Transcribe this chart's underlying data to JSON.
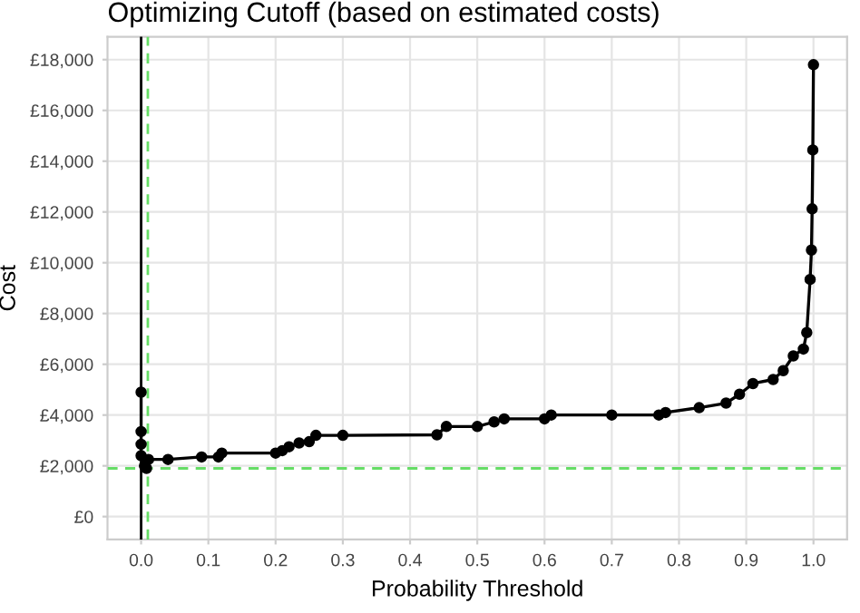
{
  "chart_data": {
    "type": "line",
    "title": "Optimizing Cutoff (based on estimated costs)",
    "xlabel": "Probability Threshold",
    "ylabel": "Cost",
    "series": [
      {
        "color": "#000000",
        "x": [
          0,
          0,
          0,
          0,
          0.005,
          0.008,
          0.011,
          0.04,
          0.09,
          0.115,
          0.12,
          0.2,
          0.21,
          0.22,
          0.235,
          0.25,
          0.26,
          0.3,
          0.44,
          0.454,
          0.5,
          0.525,
          0.54,
          0.6,
          0.61,
          0.7,
          0.77,
          0.78,
          0.83,
          0.87,
          0.89,
          0.91,
          0.94,
          0.955,
          0.97,
          0.985,
          0.99,
          0.995,
          0.997,
          0.998,
          0.999,
          1.0
        ],
        "values": [
          4900,
          3350,
          2850,
          2400,
          2000,
          1900,
          2250,
          2250,
          2350,
          2350,
          2500,
          2500,
          2600,
          2750,
          2900,
          2950,
          3200,
          3200,
          3220,
          3550,
          3550,
          3730,
          3850,
          3850,
          4000,
          4000,
          4000,
          4100,
          4290,
          4470,
          4820,
          5240,
          5400,
          5750,
          6330,
          6600,
          7250,
          9340,
          10500,
          12120,
          14440,
          17800
        ]
      }
    ],
    "marker": "circle",
    "line_style": "solid",
    "grid": true,
    "xlim": [
      -0.05,
      1.05
    ],
    "xticks": [
      {
        "value": 0,
        "label": "0.0"
      },
      0.1,
      0.2,
      0.3,
      0.4,
      0.5,
      0.6,
      0.7,
      0.8,
      0.9,
      {
        "value": 1,
        "label": "1.0"
      }
    ],
    "ylim": [
      -900,
      18900
    ],
    "yticks": [
      {
        "value": 0,
        "label": "£0"
      },
      {
        "value": 2000,
        "label": "£2,000"
      },
      {
        "value": 4000,
        "label": "£4,000"
      },
      {
        "value": 6000,
        "label": "£6,000"
      },
      {
        "value": 8000,
        "label": "£8,000"
      },
      {
        "value": 10000,
        "label": "£10,000"
      },
      {
        "value": 12000,
        "label": "£12,000"
      },
      {
        "value": 14000,
        "label": "£14,000"
      },
      {
        "value": 16000,
        "label": "£16,000"
      },
      {
        "value": 18000,
        "label": "£18,000"
      }
    ],
    "ref_lines": [
      {
        "axis": "x",
        "value": 0,
        "color": "#000000",
        "line_style": "solid"
      },
      {
        "axis": "x",
        "value": 0.01,
        "color": "#66dd66",
        "line_style": "dashed"
      },
      {
        "axis": "y",
        "value": 1900,
        "color": "#66dd66",
        "line_style": "dashed"
      }
    ]
  }
}
